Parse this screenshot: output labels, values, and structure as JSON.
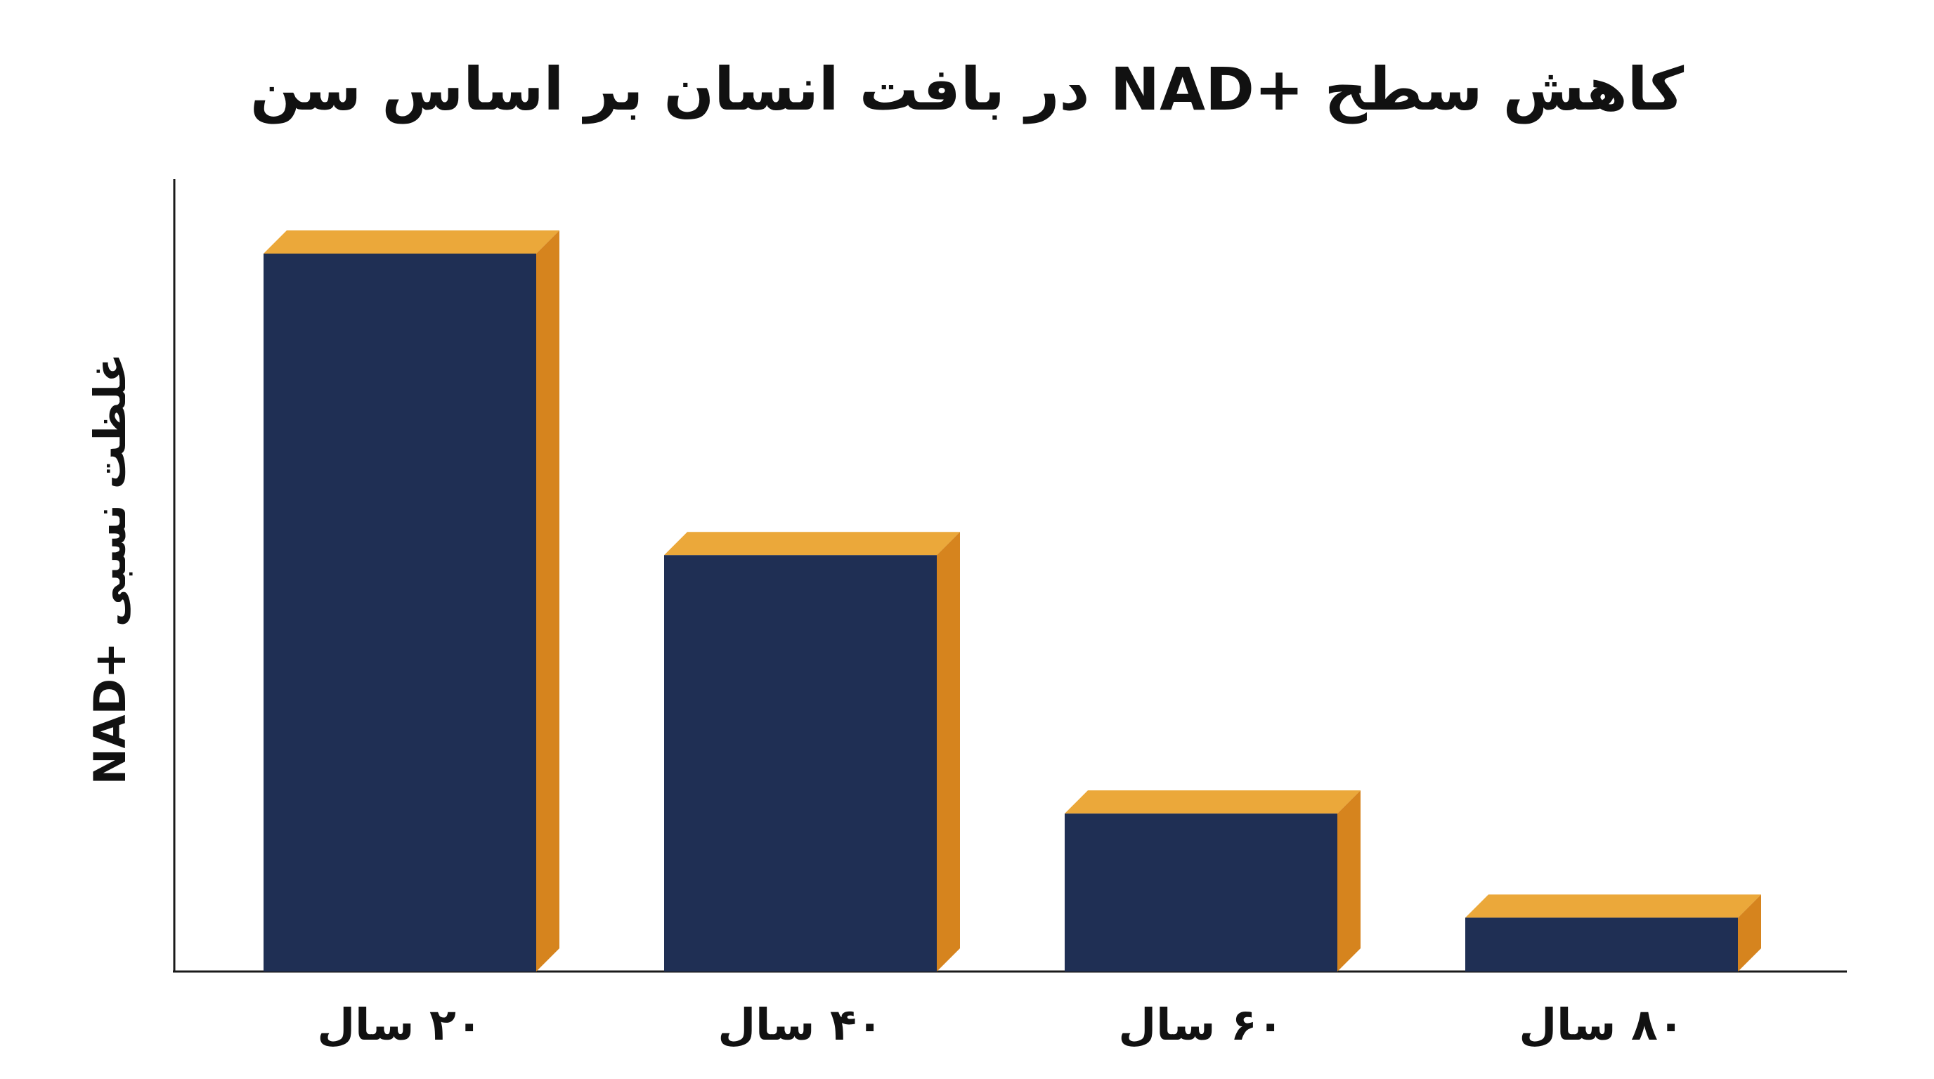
{
  "chart_data": {
    "type": "bar",
    "title": "کاهش سطح +NAD در بافت انسان بر اساس سن",
    "xlabel": "",
    "ylabel": "غلظت نسبی +NAD",
    "categories": [
      "۲۰ سال",
      "۴۰ سال",
      "۶۰ سال",
      "۸۰ سال"
    ],
    "values": [
      100,
      58,
      22,
      7.5
    ],
    "ylim": [
      0,
      110
    ],
    "grid": false,
    "legend": "none",
    "style": "3d-bar"
  },
  "colors": {
    "bar_front": "#1f2f54",
    "bar_top": "#eba83a",
    "bar_side": "#d6841e",
    "axis": "#1a1a1a",
    "text": "#111111",
    "background": "#ffffff"
  }
}
